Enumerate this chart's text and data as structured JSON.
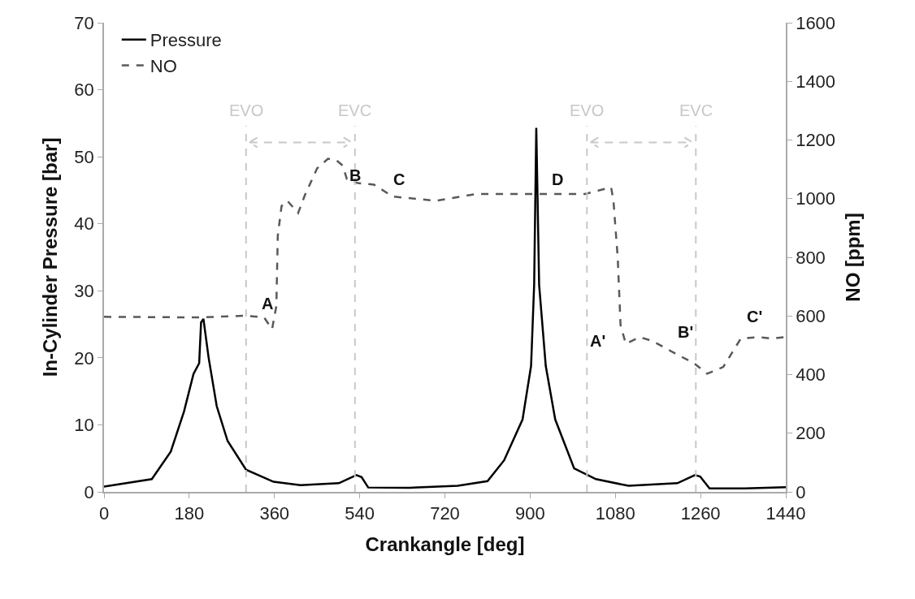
{
  "chart_data": {
    "type": "line",
    "xlabel": "Crankangle [deg]",
    "ylabel": "In-Cylinder Pressure [bar]",
    "y2label": "NO [ppm]",
    "xlim": [
      0,
      1440
    ],
    "xticks": [
      0,
      180,
      360,
      540,
      720,
      900,
      1080,
      1260,
      1440
    ],
    "ylim": [
      0,
      70
    ],
    "yticks": [
      0,
      10,
      20,
      30,
      40,
      50,
      60,
      70
    ],
    "y2lim": [
      0,
      1600
    ],
    "y2ticks": [
      0,
      200,
      400,
      600,
      800,
      1000,
      1200,
      1400,
      1600
    ],
    "grid": false,
    "legend": "top left",
    "marker": "none",
    "series": [
      {
        "name": "Pressure",
        "color": "#000000",
        "line_style": "solid",
        "x": [
          0,
          101,
          141,
          169,
          189,
          201,
          205,
          210,
          221,
          238,
          261,
          300,
          358,
          415,
          496,
          533,
          544,
          558,
          644,
          747,
          810,
          845,
          884,
          902,
          908.5,
          913,
          919,
          933,
          953,
          993,
          1039,
          1108,
          1211,
          1248,
          1259,
          1279,
          1354,
          1440
        ],
        "values": [
          0.8,
          1.9,
          6.0,
          12.0,
          17.6,
          19.2,
          25.3,
          25.8,
          20.0,
          12.8,
          7.6,
          3.3,
          1.5,
          1.0,
          1.3,
          2.5,
          2.2,
          0.65,
          0.6,
          0.9,
          1.6,
          4.7,
          10.8,
          18.8,
          30.9,
          54.3,
          30.9,
          18.8,
          10.8,
          3.5,
          1.9,
          0.9,
          1.3,
          2.5,
          2.3,
          0.5,
          0.5,
          0.7
        ]
      },
      {
        "name": "NO",
        "color": "#595959",
        "line_style": "dashed",
        "axis": "y2",
        "x": [
          0,
          204,
          300,
          338,
          355,
          364,
          367,
          375,
          387,
          410,
          424,
          450,
          473,
          490,
          504,
          513,
          536,
          570,
          610,
          701,
          787,
          845,
          907,
          1016,
          1071,
          1076,
          1085,
          1091,
          1102,
          1131,
          1159,
          1211,
          1245,
          1274,
          1308,
          1345,
          1382,
          1411,
          1440
        ],
        "values": [
          597,
          595,
          601,
          595,
          555,
          634,
          873,
          975,
          993,
          951,
          1011,
          1103,
          1136,
          1132,
          1113,
          1067,
          1053,
          1048,
          1007,
          993,
          1016,
          1016,
          1016,
          1016,
          1039,
          993,
          799,
          569,
          505,
          528,
          514,
          468,
          440,
          403,
          426,
          523,
          528,
          523,
          528
        ]
      }
    ],
    "ref_lines": [
      {
        "axis": "x",
        "value": 300,
        "label": "EVO",
        "color": "#c8c8c8",
        "line_style": "dashed"
      },
      {
        "axis": "x",
        "value": 530,
        "label": "EVC",
        "color": "#c8c8c8",
        "line_style": "dashed"
      },
      {
        "axis": "x",
        "value": 1020,
        "label": "EVO",
        "color": "#c8c8c8",
        "line_style": "dashed"
      },
      {
        "axis": "x",
        "value": 1250,
        "label": "EVC",
        "color": "#c8c8c8",
        "line_style": "dashed"
      }
    ],
    "annotations": [
      "A",
      "B",
      "C",
      "D",
      "A'",
      "B'",
      "C'"
    ]
  }
}
